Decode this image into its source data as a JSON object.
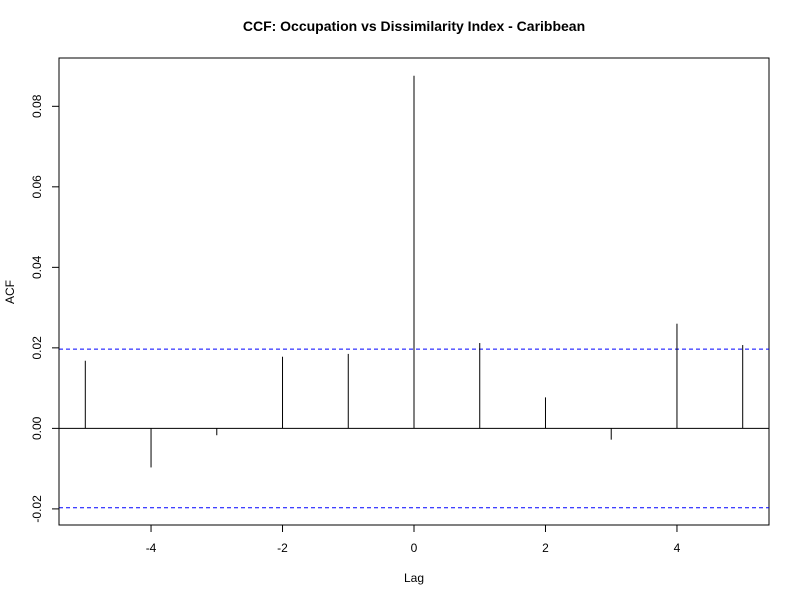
{
  "chart_data": {
    "type": "bar",
    "title": "CCF: Occupation vs Dissimilarity Index - Caribbean",
    "xlabel": "Lag",
    "ylabel": "ACF",
    "x": [
      -5,
      -4,
      -3,
      -2,
      -1,
      0,
      1,
      2,
      3,
      4,
      5
    ],
    "values": [
      0.0168,
      -0.0097,
      -0.0017,
      0.0178,
      0.0185,
      0.0876,
      0.0212,
      0.0077,
      -0.0028,
      0.026,
      0.0207
    ],
    "confidence_bounds": [
      0.0197,
      -0.0197
    ],
    "xlim": [
      -5.4,
      5.4
    ],
    "ylim": [
      -0.024,
      0.092
    ],
    "xticks": [
      -4,
      -2,
      0,
      2,
      4
    ],
    "yticks": [
      -0.02,
      0.0,
      0.02,
      0.04,
      0.06,
      0.08
    ],
    "xtick_labels": [
      "-4",
      "-2",
      "0",
      "2",
      "4"
    ],
    "ytick_labels": [
      "-0.02",
      "0.00",
      "0.02",
      "0.04",
      "0.06",
      "0.08"
    ],
    "grid": false,
    "colors": {
      "bars": "#000000",
      "zero_line": "#000000",
      "bounds": "#0000ff",
      "frame": "#000000"
    }
  }
}
